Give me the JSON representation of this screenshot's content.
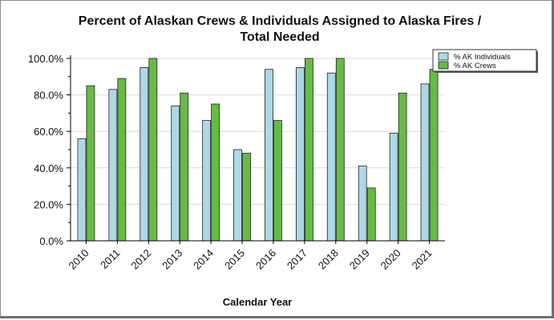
{
  "chart_data": {
    "type": "bar",
    "title_line1": "Percent of Alaskan Crews & Individuals Assigned to Alaska Fires /",
    "title_line2": "Total Needed",
    "xlabel": "Calendar Year",
    "ylabel": "",
    "ylim": [
      0,
      100
    ],
    "yticks": [
      "0.0%",
      "20.0%",
      "40.0%",
      "60.0%",
      "80.0%",
      "100.0%"
    ],
    "categories": [
      "2010",
      "2011",
      "2012",
      "2013",
      "2014",
      "2015",
      "2016",
      "2017",
      "2018",
      "2019",
      "2020",
      "2021"
    ],
    "series": [
      {
        "name": "% AK Individuals",
        "color": "#add8e6",
        "values": [
          56,
          83,
          95,
          74,
          66,
          50,
          94,
          95,
          92,
          41,
          59,
          86
        ]
      },
      {
        "name": "% AK Crews",
        "color": "#66bb44",
        "values": [
          85,
          89,
          100,
          81,
          75,
          48,
          66,
          100,
          100,
          29,
          81,
          94
        ]
      }
    ],
    "grid": true,
    "legend_position": "top-right"
  }
}
